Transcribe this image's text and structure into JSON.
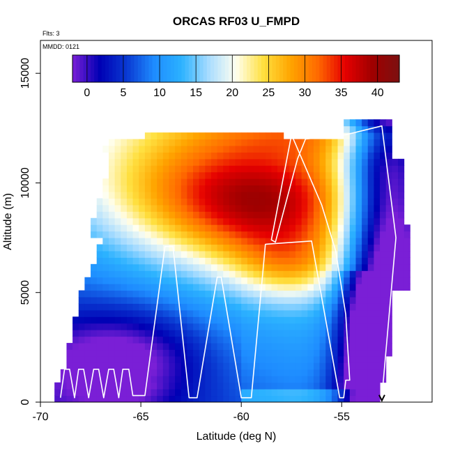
{
  "chart_data": {
    "type": "heatmap",
    "title": "ORCAS RF03 U_FMPD",
    "annotations": [
      "Flts: 3",
      "MMDD: 0121"
    ],
    "xlabel": "Latitude (deg N)",
    "ylabel": "Altitude (m)",
    "xlim": [
      -70,
      -50.5
    ],
    "ylim": [
      0,
      16500
    ],
    "x_ticks": [
      -70,
      -65,
      -60,
      -55
    ],
    "x_tick_labels": [
      "-70",
      "-65",
      "-60",
      "-55"
    ],
    "y_ticks": [
      0,
      5000,
      10000,
      15000
    ],
    "y_tick_labels": [
      "0",
      "5000",
      "10000",
      "15000"
    ],
    "colorbar": {
      "range": [
        -2,
        43
      ],
      "ticks": [
        0,
        5,
        10,
        15,
        20,
        25,
        30,
        35,
        40
      ],
      "tick_labels": [
        "0",
        "5",
        "10",
        "15",
        "20",
        "25",
        "30",
        "35",
        "40"
      ],
      "colors": [
        "#7a1fd6",
        "#0000b4",
        "#0a3ad2",
        "#1e8cff",
        "#2cb2ff",
        "#a8dcff",
        "#fffff0",
        "#ffe040",
        "#ffa500",
        "#ff6a00",
        "#e60000",
        "#a00000",
        "#7c1010"
      ]
    },
    "flight_track": [
      [
        -69.0,
        200
      ],
      [
        -68.8,
        1500
      ],
      [
        -68.55,
        1500
      ],
      [
        -68.3,
        200
      ],
      [
        -68.1,
        1500
      ],
      [
        -67.85,
        1500
      ],
      [
        -67.6,
        200
      ],
      [
        -67.35,
        1500
      ],
      [
        -67.1,
        1500
      ],
      [
        -66.85,
        200
      ],
      [
        -66.6,
        1500
      ],
      [
        -66.35,
        1500
      ],
      [
        -66.1,
        200
      ],
      [
        -65.9,
        1500
      ],
      [
        -65.6,
        1500
      ],
      [
        -65.4,
        300
      ],
      [
        -64.8,
        300
      ],
      [
        -63.8,
        7100
      ],
      [
        -63.4,
        7100
      ],
      [
        -62.6,
        200
      ],
      [
        -62.2,
        200
      ],
      [
        -61.2,
        5700
      ],
      [
        -61.0,
        5700
      ],
      [
        -60.0,
        200
      ],
      [
        -59.5,
        200
      ],
      [
        -58.8,
        7200
      ],
      [
        -56.5,
        7350
      ],
      [
        -55.1,
        200
      ],
      [
        -54.9,
        200
      ],
      [
        -54.8,
        1000
      ],
      [
        -54.6,
        1000
      ],
      [
        -54.8,
        4000
      ],
      [
        -55.3,
        6900
      ],
      [
        -56.0,
        9000
      ],
      [
        -57.5,
        12200
      ],
      [
        -58.5,
        7400
      ],
      [
        -58.3,
        7300
      ],
      [
        -57.2,
        11100
      ],
      [
        -56.8,
        12000
      ],
      [
        -54.8,
        12200
      ],
      [
        -53.0,
        12600
      ],
      [
        -52.3,
        7500
      ],
      [
        -53.0,
        200
      ]
    ]
  }
}
